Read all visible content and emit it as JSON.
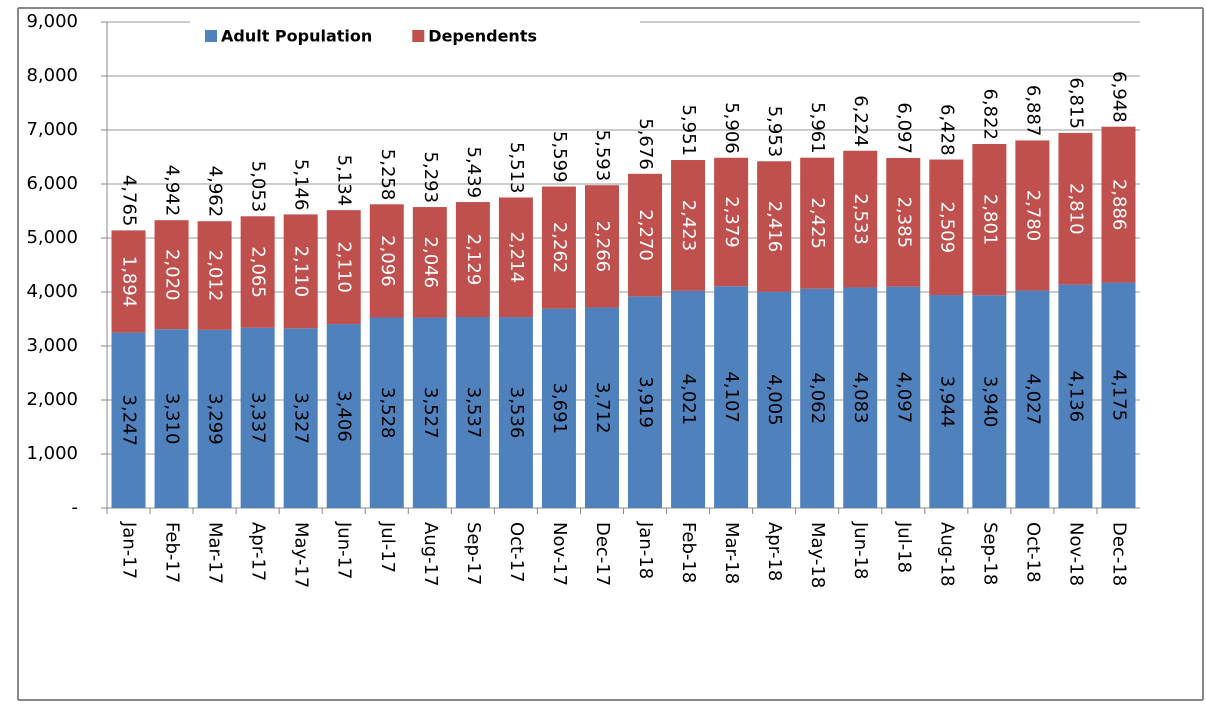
{
  "chart_data": {
    "type": "stacked_bar",
    "categories": [
      "Jan-17",
      "Feb-17",
      "Mar-17",
      "Apr-17",
      "May-17",
      "Jun-17",
      "Jul-17",
      "Aug-17",
      "Sep-17",
      "Oct-17",
      "Nov-17",
      "Dec-17",
      "Jan-18",
      "Feb-18",
      "Mar-18",
      "Apr-18",
      "May-18",
      "Jun-18",
      "Jul-18",
      "Aug-18",
      "Sep-18",
      "Oct-18",
      "Nov-18",
      "Dec-18"
    ],
    "series": [
      {
        "name": "Adult Population",
        "color": "#4f81bd",
        "values": [
          3247,
          3310,
          3299,
          3337,
          3327,
          3406,
          3528,
          3527,
          3537,
          3536,
          3691,
          3712,
          3919,
          4021,
          4107,
          4005,
          4062,
          4083,
          4097,
          3944,
          3940,
          4027,
          4136,
          4175
        ],
        "value_labels": [
          "3,247",
          "3,310",
          "3,299",
          "3,337",
          "3,327",
          "3,406",
          "3,528",
          "3,527",
          "3,537",
          "3,536",
          "3,691",
          "3,712",
          "3,919",
          "4,021",
          "4,107",
          "4,005",
          "4,062",
          "4,083",
          "4,097",
          "3,944",
          "3,940",
          "4,027",
          "4,136",
          "4,175"
        ]
      },
      {
        "name": "Dependents",
        "color": "#c0504d",
        "values": [
          1894,
          2020,
          2012,
          2065,
          2110,
          2110,
          2096,
          2046,
          2129,
          2214,
          2262,
          2266,
          2270,
          2423,
          2379,
          2416,
          2425,
          2533,
          2385,
          2509,
          2801,
          2780,
          2810,
          2886
        ],
        "value_labels": [
          "1,894",
          "2,020",
          "2,012",
          "2,065",
          "2,110",
          "2,110",
          "2,096",
          "2,046",
          "2,129",
          "2,214",
          "2,262",
          "2,266",
          "2,270",
          "2,423",
          "2,379",
          "2,416",
          "2,425",
          "2,533",
          "2,385",
          "2,509",
          "2,801",
          "2,780",
          "2,810",
          "2,886"
        ]
      }
    ],
    "totals": {
      "values": [
        4765,
        4942,
        4962,
        5053,
        5146,
        5134,
        5258,
        5293,
        5439,
        5513,
        5599,
        5593,
        5676,
        5951,
        5906,
        5953,
        5961,
        6224,
        6097,
        6428,
        6822,
        6887,
        6815,
        6948
      ],
      "value_labels": [
        "4,765",
        "4,942",
        "4,962",
        "5,053",
        "5,146",
        "5,134",
        "5,258",
        "5,293",
        "5,439",
        "5,513",
        "5,599",
        "5,593",
        "5,676",
        "5,951",
        "5,906",
        "5,953",
        "5,961",
        "6,224",
        "6,097",
        "6,428",
        "6,822",
        "6,887",
        "6,815",
        "6,948"
      ]
    },
    "ylim": [
      0,
      9000
    ],
    "yticks": [
      {
        "value": 0,
        "label": "-"
      },
      {
        "value": 1000,
        "label": "1,000"
      },
      {
        "value": 2000,
        "label": "2,000"
      },
      {
        "value": 3000,
        "label": "3,000"
      },
      {
        "value": 4000,
        "label": "4,000"
      },
      {
        "value": 5000,
        "label": "5,000"
      },
      {
        "value": 6000,
        "label": "6,000"
      },
      {
        "value": 7000,
        "label": "7,000"
      },
      {
        "value": 8000,
        "label": "8,000"
      },
      {
        "value": 9000,
        "label": "9,000"
      }
    ],
    "grid": true
  }
}
